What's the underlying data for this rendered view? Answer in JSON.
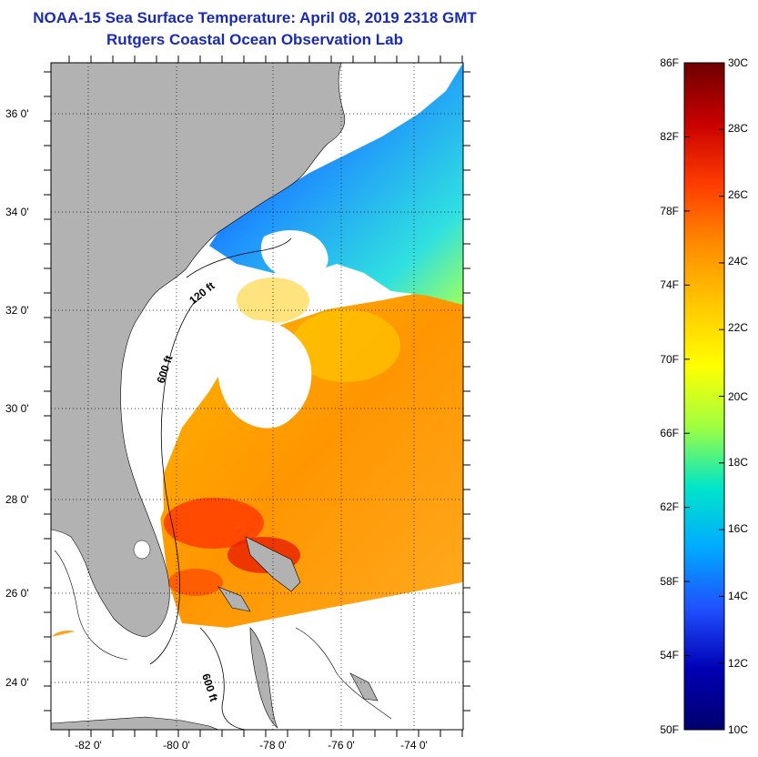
{
  "header": {
    "title": "NOAA-15 Sea Surface Temperature:  April 08, 2019 2318 GMT",
    "subtitle": "Rutgers Coastal Ocean Observation Lab"
  },
  "map": {
    "lat_ticks": [
      {
        "lat": 36,
        "label": "36 0'"
      },
      {
        "lat": 34,
        "label": "34 0'"
      },
      {
        "lat": 32,
        "label": "32 0'"
      },
      {
        "lat": 30,
        "label": "30 0'"
      },
      {
        "lat": 28,
        "label": "28 0'"
      },
      {
        "lat": 26,
        "label": "26 0'"
      },
      {
        "lat": 24,
        "label": "24 0'"
      }
    ],
    "lon_ticks": [
      {
        "lon": -82,
        "label": "-82 0'"
      },
      {
        "lon": -80,
        "label": "-80 0'"
      },
      {
        "lon": -78,
        "label": "-78 0'"
      },
      {
        "lon": -76,
        "label": "-76 0'"
      },
      {
        "lon": -74,
        "label": "-74 0'"
      }
    ],
    "contour_labels": [
      "120 ft",
      "600 ft",
      "600 ft"
    ],
    "land_color": "#b2b2b2",
    "cloud_color": "#ffffff"
  },
  "colorbar": {
    "fahrenheit_labels": [
      "86F",
      "82F",
      "78F",
      "74F",
      "70F",
      "66F",
      "62F",
      "58F",
      "54F",
      "50F"
    ],
    "celsius_labels": [
      "30C",
      "28C",
      "26C",
      "24C",
      "22C",
      "20C",
      "18C",
      "16C",
      "14C",
      "12C",
      "10C"
    ],
    "colors": [
      "#6e0000",
      "#c80000",
      "#ff3c00",
      "#ff8c00",
      "#ffc800",
      "#ffff00",
      "#a0ff40",
      "#00e6c8",
      "#00aaff",
      "#2050ff",
      "#0000b4",
      "#00006e"
    ]
  }
}
